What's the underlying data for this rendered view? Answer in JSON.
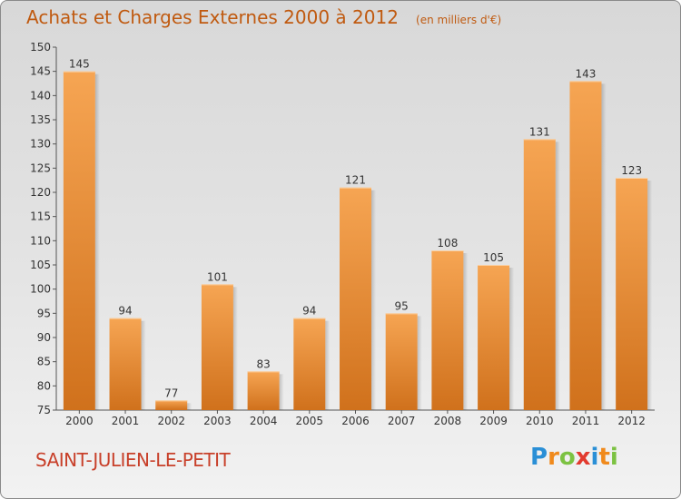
{
  "chart_data": {
    "type": "bar",
    "title": "Achats et Charges Externes 2000 à 2012",
    "subtitle": "(en milliers d'€)",
    "categories": [
      "2000",
      "2001",
      "2002",
      "2003",
      "2004",
      "2005",
      "2006",
      "2007",
      "2008",
      "2009",
      "2010",
      "2011",
      "2012"
    ],
    "values": [
      145,
      94,
      77,
      101,
      83,
      94,
      121,
      95,
      108,
      105,
      131,
      143,
      123
    ],
    "ylim": [
      75,
      150
    ],
    "yticks": [
      75,
      80,
      85,
      90,
      95,
      100,
      105,
      110,
      115,
      120,
      125,
      130,
      135,
      140,
      145,
      150
    ],
    "grid": false,
    "bar_color_top": "#f6a553",
    "bar_color_bottom": "#d0711c"
  },
  "place_name": "SAINT-JULIEN-LE-PETIT",
  "logo": {
    "text": "Proxiti",
    "letters": [
      {
        "char": "P",
        "color": "#2a8fd6"
      },
      {
        "char": "r",
        "color": "#f08a1c"
      },
      {
        "char": "o",
        "color": "#7cc242"
      },
      {
        "char": "x",
        "color": "#e23a2e"
      },
      {
        "char": "i",
        "color": "#2a8fd6"
      },
      {
        "char": "t",
        "color": "#f08a1c"
      },
      {
        "char": "i",
        "color": "#7cc242"
      }
    ]
  }
}
